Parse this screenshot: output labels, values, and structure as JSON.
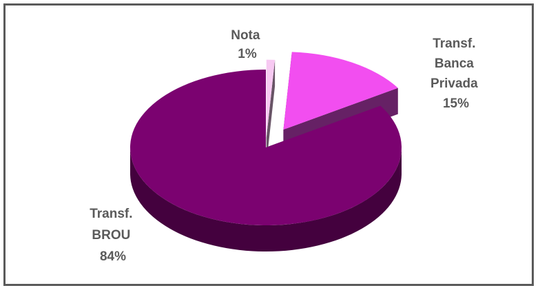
{
  "chart_data": {
    "type": "pie",
    "categories": [
      "Nota",
      "Transf. Banca Privada",
      "Transf. BROU"
    ],
    "values": [
      1,
      15,
      84
    ],
    "labels": [
      {
        "lines": [
          "Nota",
          "1%"
        ]
      },
      {
        "lines": [
          "Transf.",
          "Banca",
          "Privada",
          "15%"
        ]
      },
      {
        "lines": [
          "Transf.",
          "BROU",
          "84%"
        ]
      }
    ],
    "colors": {
      "Nota": "#f7c9f2",
      "Transf. Banca Privada": "#f24ef0",
      "Transf. BROU": "#7b0270"
    },
    "style": "3d-exploded",
    "title": "",
    "legend": "none"
  }
}
